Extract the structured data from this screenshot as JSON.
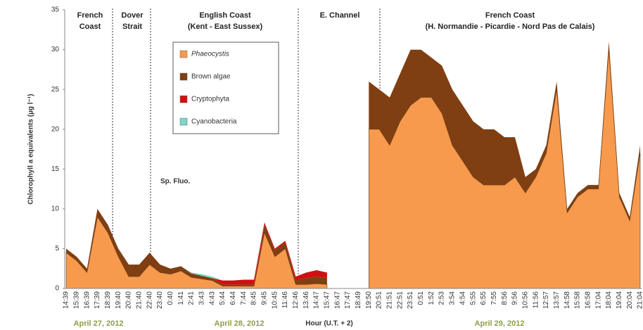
{
  "chart_data": {
    "type": "stacked_area",
    "ylabel": "Chlorophyll a equivalents (µg l⁻¹)",
    "xlabel": "Hour (U.T. + 2)",
    "annotation": "Sp. Fluo.",
    "regions": [
      [
        "French",
        "Coast"
      ],
      [
        "Dover",
        "Strait"
      ],
      [
        "English Coast",
        "(Kent - East Sussex)"
      ],
      [
        "E. Channel"
      ],
      [
        "French Coast",
        "(H. Normandie - Picardie - Nord Pas de Calais)"
      ]
    ],
    "dates": [
      "April 27, 2012",
      "April 28, 2012",
      "April 29, 2012"
    ],
    "categories": [
      "14:39",
      "15:39",
      "16:39",
      "17:39",
      "18:39",
      "19:40",
      "20:40",
      "21:40",
      "22:40",
      "23:40",
      "0:40",
      "1:41",
      "2:41",
      "3:43",
      "4:43",
      "5:44",
      "6:44",
      "7:44",
      "8:45",
      "9:45",
      "10:45",
      "11:46",
      "12:46",
      "13:46",
      "14:47",
      "15:47",
      "16:47",
      "17:47",
      "18:49",
      "19:50",
      "20:51",
      "21:51",
      "22:51",
      "23:51",
      "0:51",
      "1:52",
      "2:53",
      "3:54",
      "4:54",
      "5:55",
      "6:55",
      "7:55",
      "8:56",
      "9:56",
      "10:56",
      "11:56",
      "12:57",
      "13:57",
      "14:58",
      "15:58",
      "16:58",
      "17:04",
      "18:04",
      "19:04",
      "20:04",
      "21:04"
    ],
    "series": [
      {
        "name": "Phaeocystis",
        "color": "#f79a4d",
        "values": [
          4.5,
          3.5,
          2,
          9,
          7,
          4,
          1.5,
          1.5,
          3,
          2,
          1.8,
          2.2,
          1.4,
          1.2,
          1,
          0.3,
          0.3,
          0.3,
          0.3,
          7,
          4,
          5,
          0.5,
          0.5,
          0.6,
          0.5,
          null,
          null,
          null,
          20,
          20,
          18,
          21,
          23,
          24,
          24,
          22,
          18,
          16,
          14,
          13,
          13,
          13,
          14,
          12,
          14,
          17,
          25,
          9.5,
          11.5,
          12.5,
          12.5,
          30,
          11.5,
          8.5,
          17
        ]
      },
      {
        "name": "Brown algae",
        "color": "#7f3f12",
        "values": [
          0.5,
          0.5,
          0.5,
          1,
          1,
          1,
          1.5,
          1.5,
          1.5,
          1,
          0.7,
          0.6,
          0.5,
          0.4,
          0.3,
          0.2,
          0.2,
          0.2,
          0.2,
          1,
          0.8,
          0.8,
          0.5,
          0.8,
          0.9,
          0.8,
          null,
          null,
          null,
          6,
          5,
          6,
          6,
          7,
          6,
          5,
          6,
          7,
          7,
          7,
          7,
          7,
          6,
          5,
          2,
          1,
          1,
          1,
          0.5,
          0.5,
          0.5,
          0.5,
          1,
          0.5,
          0.5,
          1
        ]
      },
      {
        "name": "Cryptophyta",
        "color": "#d01010",
        "values": [
          0,
          0,
          0,
          0,
          0,
          0,
          0,
          0,
          0,
          0,
          0,
          0,
          0,
          0,
          0,
          0.5,
          0.5,
          0.6,
          0.6,
          0.3,
          0.2,
          0.2,
          0.5,
          0.7,
          0.8,
          0.7,
          null,
          null,
          null,
          0,
          0,
          0,
          0,
          0,
          0,
          0,
          0,
          0,
          0,
          0,
          0,
          0,
          0,
          0,
          0,
          0,
          0,
          0,
          0,
          0,
          0,
          0,
          0,
          0,
          0,
          0
        ]
      },
      {
        "name": "Cyanobacteria",
        "color": "#7fd6c8",
        "values": [
          0,
          0,
          0,
          0,
          0,
          0,
          0,
          0,
          0,
          0,
          0,
          0,
          0.1,
          0.2,
          0.2,
          0,
          0,
          0,
          0,
          0,
          0,
          0,
          0,
          0,
          0,
          0,
          null,
          null,
          null,
          0,
          0,
          0,
          0,
          0,
          0,
          0,
          0,
          0,
          0,
          0,
          0,
          0,
          0,
          0,
          0,
          0,
          0,
          0,
          0,
          0,
          0,
          0,
          0,
          0,
          0,
          0
        ]
      }
    ],
    "ylim": [
      0,
      35
    ],
    "yticks": [
      0,
      5,
      10,
      15,
      20,
      25,
      30,
      35
    ]
  }
}
